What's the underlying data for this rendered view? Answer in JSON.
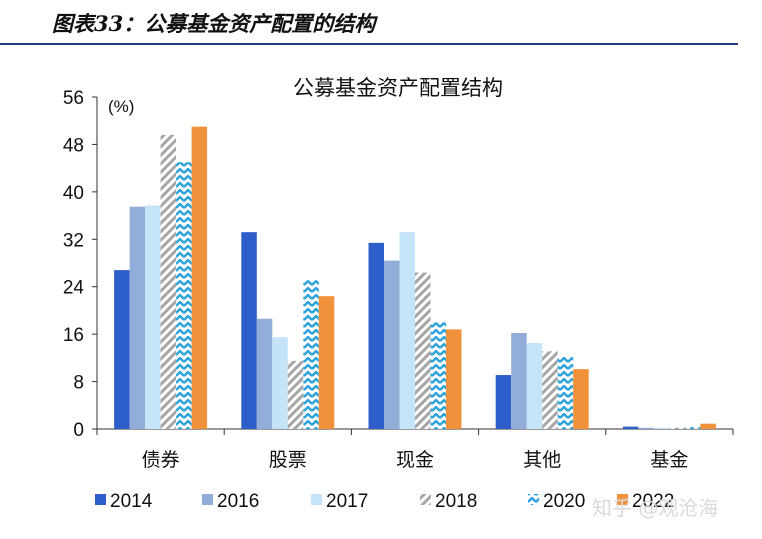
{
  "figure": {
    "title": "图表33：公募基金资产配置的结构"
  },
  "watermark": "知乎 @观沧海",
  "chart_data": {
    "type": "bar",
    "title": "公募基金资产配置结构",
    "ylabel": "(%)",
    "ylim": [
      0,
      56
    ],
    "yticks": [
      0,
      8,
      16,
      24,
      32,
      40,
      48,
      56
    ],
    "grid": false,
    "legend_position": "bottom",
    "categories": [
      "债券",
      "股票",
      "现金",
      "其他",
      "基金"
    ],
    "series": [
      {
        "name": "2014",
        "color": "#2e5ec9",
        "pattern": "solid",
        "values": [
          26.8,
          33.2,
          31.4,
          9.1,
          0.4
        ]
      },
      {
        "name": "2016",
        "color": "#93add9",
        "pattern": "solid",
        "values": [
          37.5,
          18.6,
          28.4,
          16.2,
          0.2
        ]
      },
      {
        "name": "2017",
        "color": "#c6e4f8",
        "pattern": "solid",
        "values": [
          37.7,
          15.5,
          33.2,
          14.5,
          0.2
        ]
      },
      {
        "name": "2018",
        "color": "#a6a6a6",
        "pattern": "diagonal-stripe",
        "values": [
          49.6,
          11.5,
          26.4,
          13.1,
          0.2
        ]
      },
      {
        "name": "2020",
        "color": "#2aa3dc",
        "pattern": "zigzag",
        "values": [
          45.0,
          25.1,
          18.0,
          12.3,
          0.5
        ]
      },
      {
        "name": "2022",
        "color": "#f0913b",
        "pattern": "solid",
        "values": [
          51.0,
          22.4,
          16.8,
          10.1,
          0.9
        ]
      }
    ]
  }
}
